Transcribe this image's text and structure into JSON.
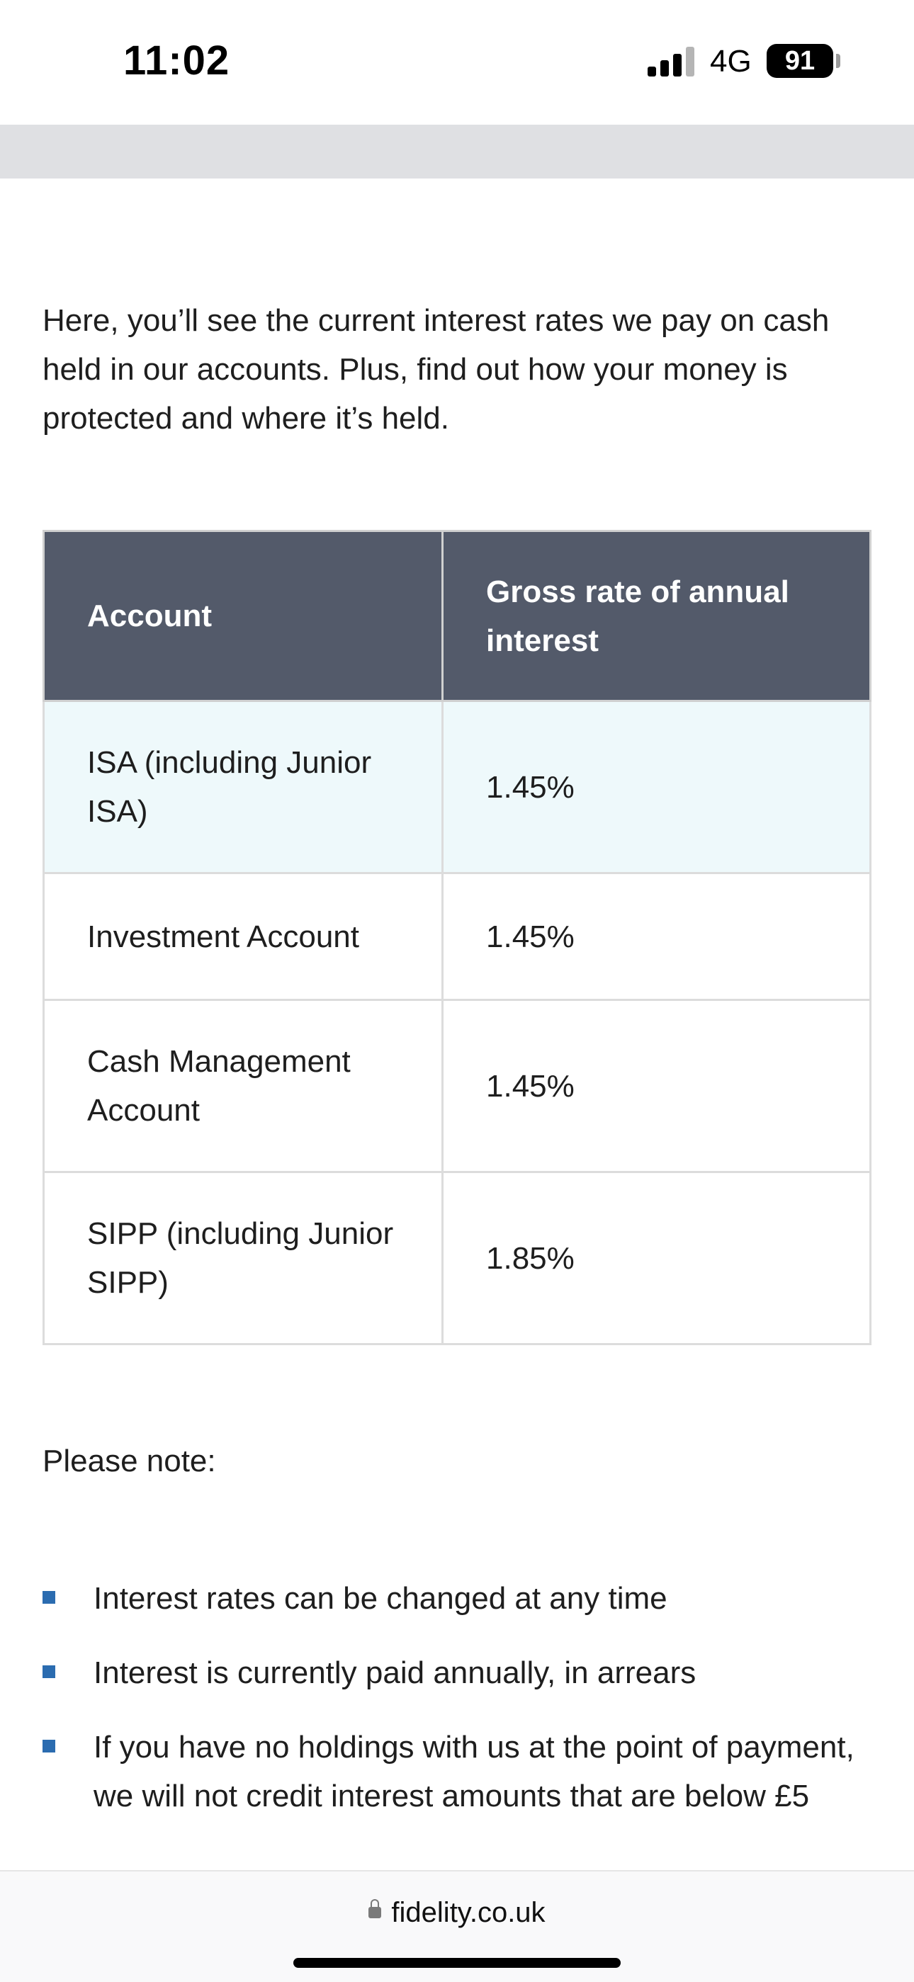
{
  "status_bar": {
    "time": "11:02",
    "network": "4G",
    "battery": "91",
    "icons": [
      "signal-icon",
      "battery-icon"
    ]
  },
  "intro_text": "Here, you’ll see the current interest rates we pay on cash held in our accounts. Plus, find out how your money is protected and where it’s held.",
  "rates_table": {
    "headers": [
      "Account",
      "Gross rate of annual interest"
    ],
    "rows": [
      {
        "account": "ISA (including Junior ISA)",
        "rate": "1.45%"
      },
      {
        "account": "Investment Account",
        "rate": "1.45%"
      },
      {
        "account": "Cash Management Account",
        "rate": "1.45%"
      },
      {
        "account": "SIPP (including Junior SIPP)",
        "rate": "1.85%"
      }
    ],
    "colors": {
      "header_bg": "#535a6a",
      "highlight_row_bg": "#eef9fb"
    }
  },
  "note_heading": "Please note:",
  "notes": [
    "Interest rates can be changed at any time",
    "Interest is currently paid annually, in arrears",
    "If you have no holdings with us at the point of payment, we will not credit interest amounts that are below £5"
  ],
  "bullet_color": "#2b6cb0",
  "browser": {
    "url": "fidelity.co.uk",
    "icons": [
      "lock-icon"
    ]
  }
}
